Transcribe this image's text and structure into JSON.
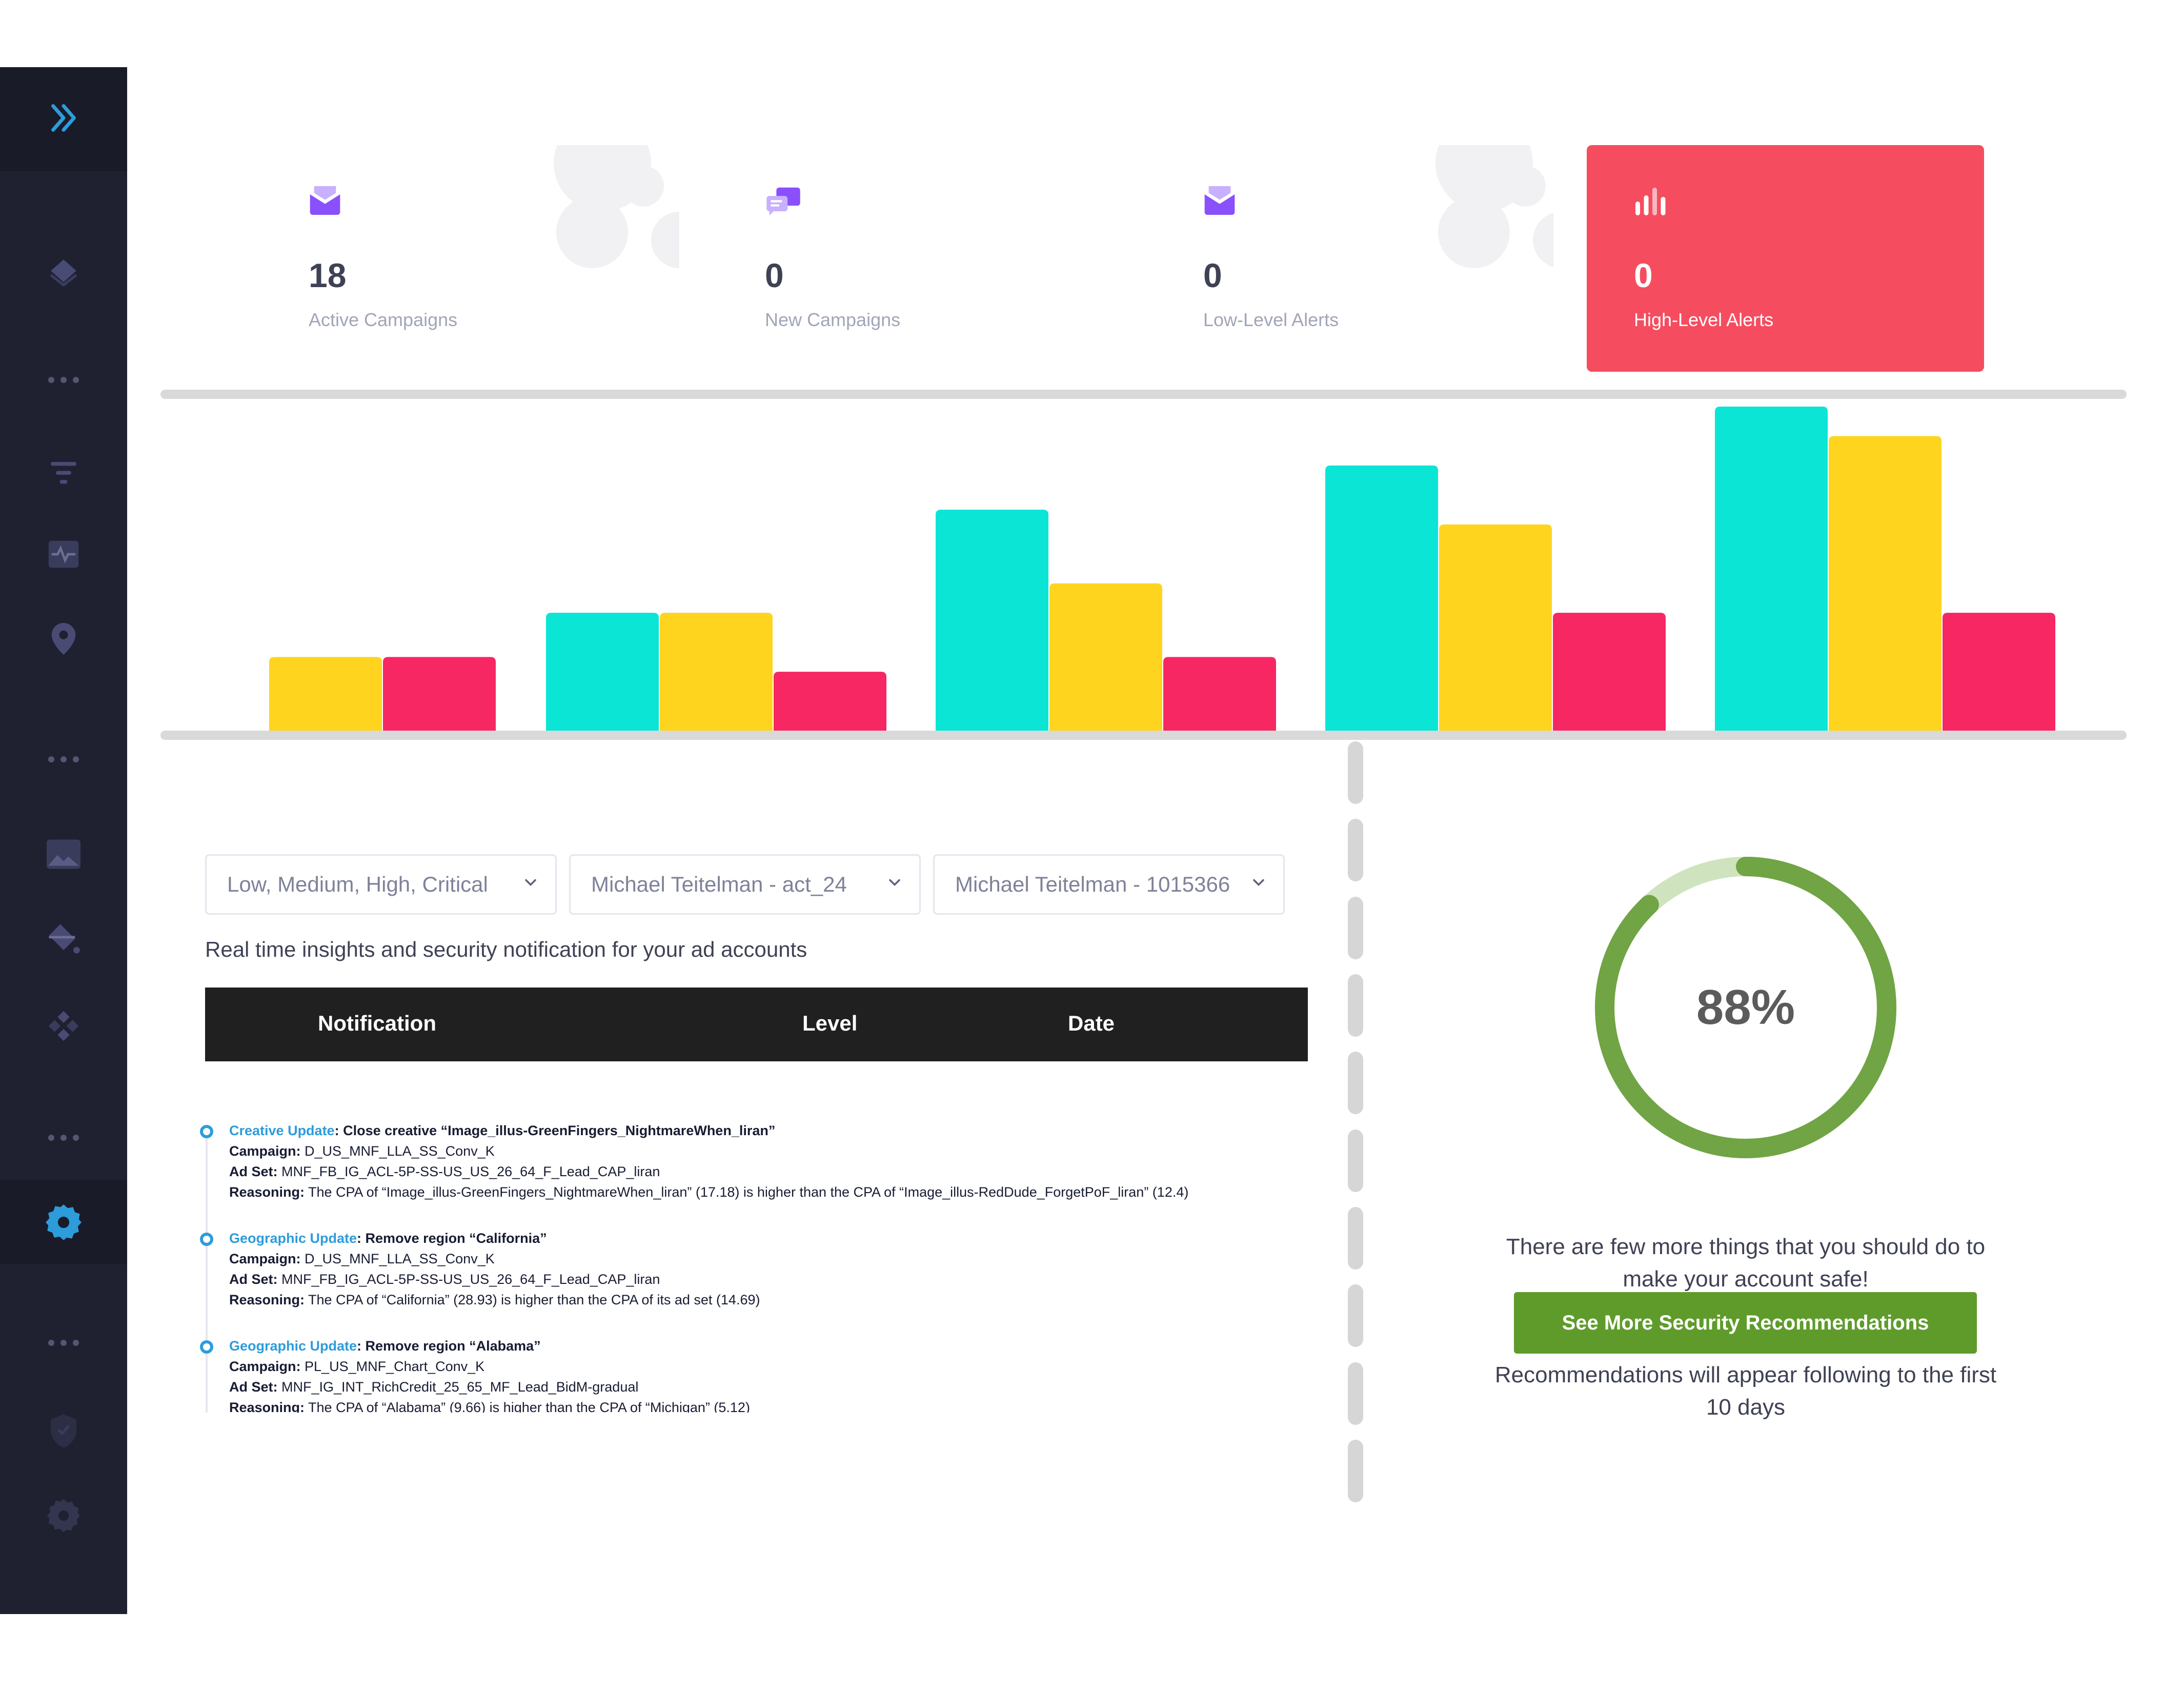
{
  "stats": {
    "active_campaigns": {
      "value": "18",
      "label": "Active Campaigns"
    },
    "new_campaigns": {
      "value": "0",
      "label": "New Campaigns"
    },
    "low_alerts": {
      "value": "0",
      "label": "Low-Level Alerts"
    },
    "high_alerts": {
      "value": "0",
      "label": "High-Level Alerts"
    }
  },
  "colors": {
    "sidebar": "#1f2131",
    "sidebar_active_icon": "#2d9cdb",
    "card_icon": "#8950fc",
    "high_alert_card": "#f54d5f",
    "bar_teal": "#0ae5d6",
    "bar_yellow": "#fed41f",
    "bar_pink": "#f72764",
    "gauge": "#70a444",
    "button": "#5f9b2b",
    "link": "#2d9cdb"
  },
  "sidebar_icons": [
    "expand-arrows-icon",
    "layers-icon",
    "more-dots-icon",
    "filter-icon",
    "activity-icon",
    "location-pin-icon",
    "more-dots-icon",
    "image-icon",
    "bucket-icon",
    "diamonds-icon",
    "more-dots-icon",
    "settings-gear-icon",
    "more-dots-icon",
    "shield-icon",
    "settings-gear-icon"
  ],
  "chart_data": {
    "type": "bar",
    "categories": [
      "",
      "",
      "",
      "",
      ""
    ],
    "series": [
      {
        "values": [
          0,
          4,
          7.5,
          9,
          11
        ]
      },
      {
        "values": [
          2.5,
          4,
          5,
          7,
          10
        ]
      },
      {
        "values": [
          2.5,
          2,
          2.5,
          4,
          4
        ]
      }
    ],
    "ylim": [
      0,
      11
    ],
    "grid": false
  },
  "filters": {
    "level": "Low, Medium, High, Critical",
    "account": "Michael Teitelman - act_24",
    "page": "Michael Teitelman - 1015366"
  },
  "subtitle": "Real time insights and security notification for your ad accounts",
  "table": {
    "headers": [
      "Notification",
      "Level",
      "Date"
    ]
  },
  "notifications": [
    {
      "type": "Creative Update",
      "action": "Close creative “Image_illus-GreenFingers_NightmareWhen_liran”",
      "campaign": "D_US_MNF_LLA_SS_Conv_K",
      "adset": "MNF_FB_IG_ACL-5P-SS-US_US_26_64_F_Lead_CAP_liran",
      "reasoning": "The CPA of “Image_illus-GreenFingers_NightmareWhen_liran” (17.18) is higher than the CPA of “Image_illus-RedDude_ForgetPoF_liran” (12.4)"
    },
    {
      "type": "Geographic Update",
      "action": "Remove region “California”",
      "campaign": "D_US_MNF_LLA_SS_Conv_K",
      "adset": "MNF_FB_IG_ACL-5P-SS-US_US_26_64_F_Lead_CAP_liran",
      "reasoning": "The CPA of “California” (28.93) is higher than the CPA of its ad set (14.69)"
    },
    {
      "type": "Geographic Update",
      "action": "Remove region “Alabama”",
      "campaign": "PL_US_MNF_Chart_Conv_K",
      "adset": "MNF_IG_INT_RichCredit_25_65_MF_Lead_BidM-gradual",
      "reasoning": "The CPA of “Alabama” (9.66) is higher than the CPA of “Michigan” (5.12)"
    }
  ],
  "field_labels": {
    "campaign": "Campaign:",
    "adset": "Ad Set:",
    "reasoning": "Reasoning:"
  },
  "score": {
    "value": 88,
    "text": "88%",
    "message": "There are few more things that you should do to make your account safe!",
    "button": "See More Security Recommendations",
    "note": "Recommendations will appear following to the first 10 days"
  }
}
